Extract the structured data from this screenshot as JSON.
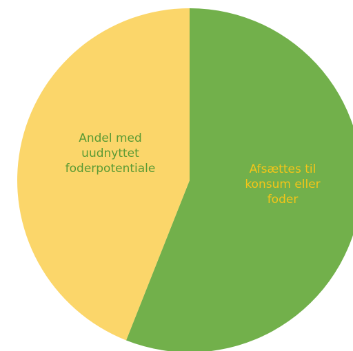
{
  "chart_data": {
    "type": "pie",
    "title": "",
    "start_angle_deg": 0,
    "direction": "clockwise",
    "slices": [
      {
        "label": "Afsættes til konsum eller foder",
        "label_lines": [
          "Afsættes til",
          "konsum eller",
          "foder"
        ],
        "value": 56,
        "color": "#72b04b",
        "label_color": "#f5c518"
      },
      {
        "label": "Andel med uudnyttet foderpotentiale",
        "label_lines": [
          "Andel med",
          "uudnyttet",
          "foderpotentiale"
        ],
        "value": 44,
        "color": "#fbd66a",
        "label_color": "#5a9a34"
      }
    ]
  }
}
